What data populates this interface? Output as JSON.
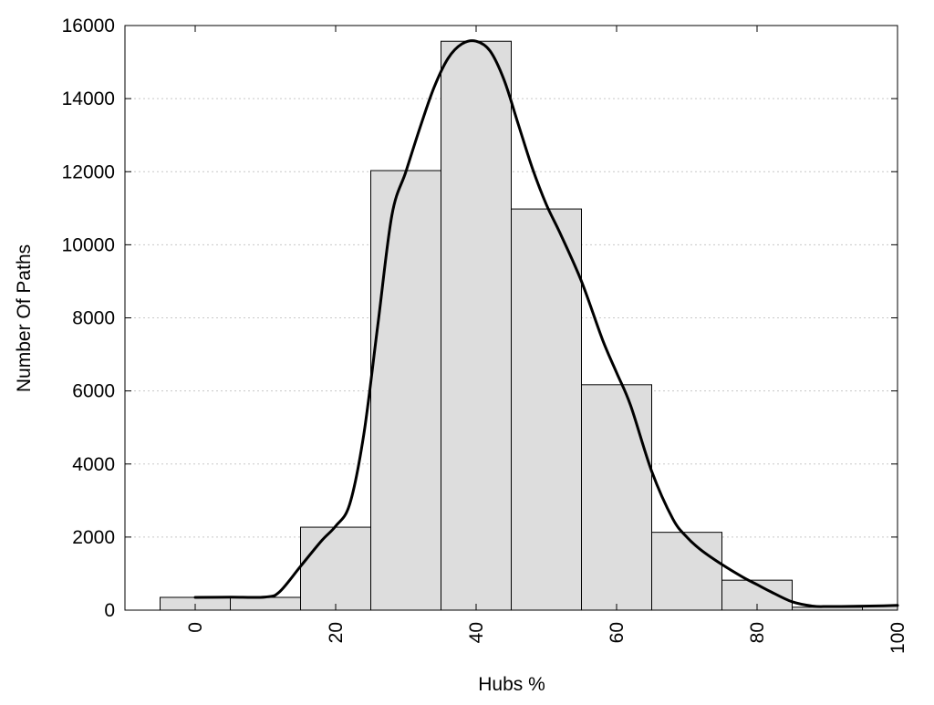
{
  "chart_data": {
    "type": "bar",
    "title": "",
    "xlabel": "Hubs %",
    "ylabel": "Number Of Paths",
    "xlim": [
      -10,
      100
    ],
    "ylim": [
      0,
      16000
    ],
    "grid": "horizontal dotted",
    "legend": "none",
    "bar_color": "#dddddd",
    "x_ticks": [
      0,
      20,
      40,
      60,
      80,
      100
    ],
    "y_ticks": [
      0,
      2000,
      4000,
      6000,
      8000,
      10000,
      12000,
      14000,
      16000
    ],
    "bins": [
      {
        "x0": -5,
        "x1": 5,
        "value": 350
      },
      {
        "x0": 5,
        "x1": 15,
        "value": 350
      },
      {
        "x0": 15,
        "x1": 25,
        "value": 2270
      },
      {
        "x0": 25,
        "x1": 35,
        "value": 12030
      },
      {
        "x0": 35,
        "x1": 45,
        "value": 15570
      },
      {
        "x0": 45,
        "x1": 55,
        "value": 10980
      },
      {
        "x0": 55,
        "x1": 65,
        "value": 6170
      },
      {
        "x0": 65,
        "x1": 75,
        "value": 2130
      },
      {
        "x0": 75,
        "x1": 85,
        "value": 820
      },
      {
        "x0": 85,
        "x1": 95,
        "value": 80
      },
      {
        "x0": 95,
        "x1": 100,
        "value": 120
      }
    ],
    "curve": {
      "x": [
        0,
        5,
        10,
        12,
        15,
        18,
        20,
        22,
        24,
        26,
        28,
        30,
        32,
        34,
        36,
        38,
        40,
        42,
        44,
        46,
        48,
        50,
        52,
        55,
        58,
        60,
        62,
        65,
        68,
        70,
        72,
        75,
        78,
        80,
        82,
        85,
        88,
        90,
        92,
        95,
        98,
        100
      ],
      "y": [
        350,
        355,
        360,
        500,
        1200,
        1900,
        2300,
        2900,
        4800,
        7800,
        10800,
        12000,
        13200,
        14300,
        15100,
        15500,
        15570,
        15300,
        14500,
        13300,
        12100,
        11100,
        10300,
        9000,
        7400,
        6500,
        5600,
        3800,
        2500,
        2000,
        1650,
        1250,
        900,
        700,
        500,
        230,
        110,
        100,
        100,
        110,
        120,
        130
      ]
    }
  }
}
